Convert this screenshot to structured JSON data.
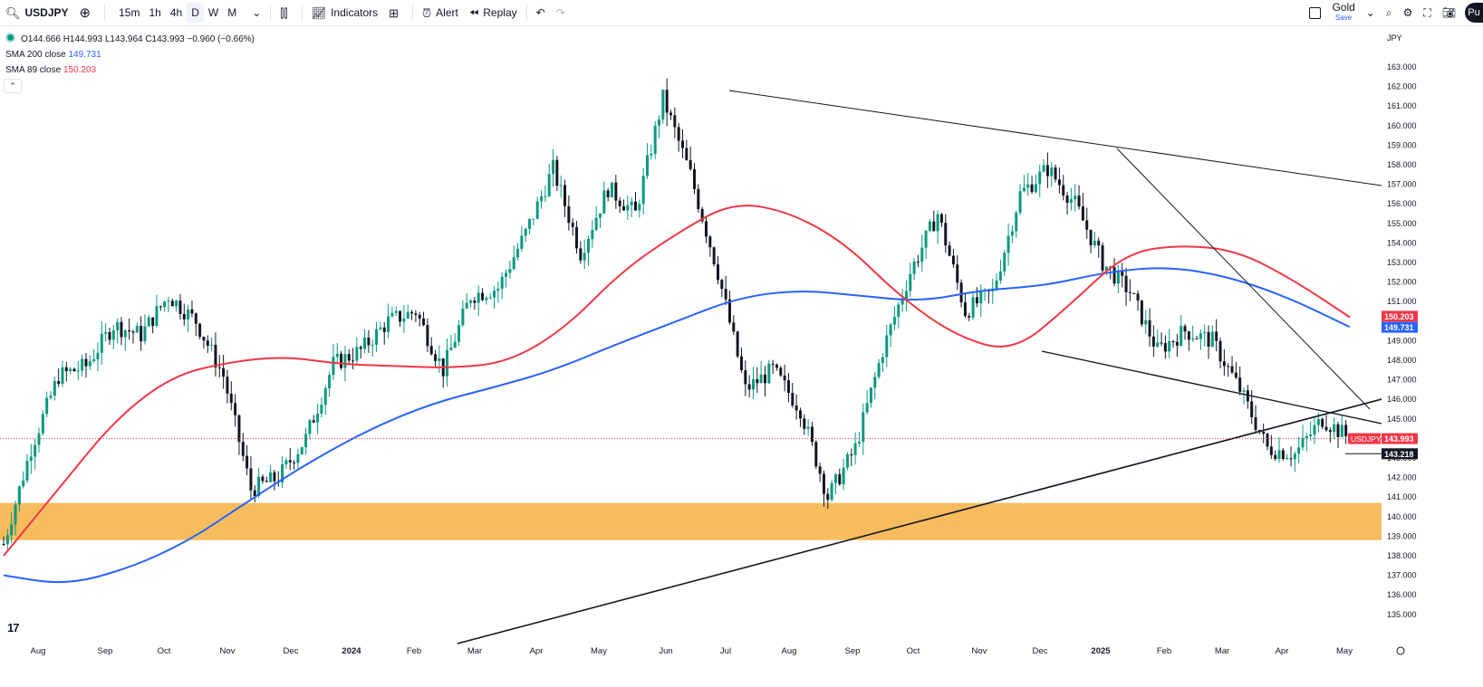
{
  "toolbar": {
    "symbol": "USDJPY",
    "timeframes": [
      "15m",
      "1h",
      "4h",
      "D",
      "W",
      "M"
    ],
    "active_timeframe": "D",
    "indicators_label": "Indicators",
    "alert_label": "Alert",
    "replay_label": "Replay",
    "layout_name": "Gold",
    "layout_save": "Save",
    "publish_label": "Pu"
  },
  "legend": {
    "ohlc": "O144.666 H144.993 L143.964 C143.993 −0.960 (−0.66%)",
    "sma200_label": "SMA 200 close",
    "sma200_value": "149.731",
    "sma89_label": "SMA 89 close",
    "sma89_value": "150.203"
  },
  "colors": {
    "up": "#089981",
    "down": "#131722",
    "sma200": "#2962ff",
    "sma89": "#f23645",
    "zone": "#f5b041",
    "trend": "#131722"
  },
  "chart_data": {
    "type": "candlestick",
    "currency": "JPY",
    "ylim": [
      134,
      164
    ],
    "y_ticks": [
      "135.000",
      "136.000",
      "137.000",
      "138.000",
      "139.000",
      "140.000",
      "141.000",
      "142.000",
      "143.000",
      "144.000",
      "145.000",
      "146.000",
      "147.000",
      "148.000",
      "149.000",
      "150.000",
      "151.000",
      "152.000",
      "153.000",
      "154.000",
      "155.000",
      "156.000",
      "157.000",
      "158.000",
      "159.000",
      "160.000",
      "161.000",
      "162.000",
      "163.000"
    ],
    "x_months": [
      "Aug",
      "Sep",
      "Oct",
      "Nov",
      "Dec",
      "2024",
      "Feb",
      "Mar",
      "Apr",
      "May",
      "Jun",
      "Jul",
      "Aug",
      "Sep",
      "Oct",
      "Nov",
      "Dec",
      "2025",
      "Feb",
      "Mar",
      "Apr",
      "May"
    ],
    "x_months_bold": [
      "2024",
      "2025"
    ],
    "price_labels": {
      "sma89": "150.203",
      "sma200": "149.731",
      "last_symbol": "USDJPY",
      "last": "143.993",
      "crosshair": "143.218"
    },
    "last_price": 143.993,
    "crosshair_price": 143.218,
    "support_zone": [
      138.8,
      140.7
    ],
    "close_path": [
      [
        "Aug",
        138.6
      ],
      [
        "Aug",
        143.5
      ],
      [
        "Sep",
        147.2
      ],
      [
        "Sep",
        147.7
      ],
      [
        "Oct",
        149.8
      ],
      [
        "Oct",
        149.3
      ],
      [
        "Nov",
        151.3
      ],
      [
        "Nov",
        150.0
      ],
      [
        "Dec",
        147.2
      ],
      [
        "Dec",
        141.4
      ],
      [
        "Dec",
        142.0
      ],
      [
        "2024",
        144.0
      ],
      [
        "2024",
        147.8
      ],
      [
        "Feb",
        148.5
      ],
      [
        "Feb",
        150.0
      ],
      [
        "Mar",
        150.5
      ],
      [
        "Mar",
        147.5
      ],
      [
        "Mar",
        151.3
      ],
      [
        "Apr",
        151.7
      ],
      [
        "Apr",
        154.5
      ],
      [
        "May",
        157.8
      ],
      [
        "May",
        153.5
      ],
      [
        "Jun",
        156.8
      ],
      [
        "Jun",
        155.5
      ],
      [
        "Jul",
        161.4
      ],
      [
        "Jul",
        157.5
      ],
      [
        "Aug",
        152.5
      ],
      [
        "Aug",
        146.5
      ],
      [
        "Aug",
        147.5
      ],
      [
        "Sep",
        145.5
      ],
      [
        "Sep",
        141.0
      ],
      [
        "Oct",
        143.5
      ],
      [
        "Oct",
        148.5
      ],
      [
        "Nov",
        152.5
      ],
      [
        "Nov",
        155.5
      ],
      [
        "Dec",
        150.5
      ],
      [
        "Dec",
        151.5
      ],
      [
        "Dec",
        156.5
      ],
      [
        "2025",
        157.8
      ],
      [
        "2025",
        156.0
      ],
      [
        "Feb",
        153.0
      ],
      [
        "Feb",
        151.5
      ],
      [
        "Mar",
        148.5
      ],
      [
        "Mar",
        149.5
      ],
      [
        "Apr",
        149.0
      ],
      [
        "Apr",
        146.5
      ],
      [
        "Apr",
        143.5
      ],
      [
        "May",
        143.2
      ],
      [
        "May",
        145.0
      ],
      [
        "May",
        143.99
      ]
    ],
    "sma89_path": [
      [
        "Aug",
        138.0
      ],
      [
        "Sep",
        141.5
      ],
      [
        "Oct",
        145.0
      ],
      [
        "Nov",
        147.2
      ],
      [
        "Nov",
        147.9
      ],
      [
        "Dec",
        148.2
      ],
      [
        "2024",
        147.8
      ],
      [
        "Feb",
        147.7
      ],
      [
        "Mar",
        147.6
      ],
      [
        "Apr",
        147.9
      ],
      [
        "May",
        149.6
      ],
      [
        "Jun",
        152.5
      ],
      [
        "Jul",
        154.5
      ],
      [
        "Aug",
        156.1
      ],
      [
        "Aug",
        155.6
      ],
      [
        "Sep",
        154.0
      ],
      [
        "Oct",
        151.2
      ],
      [
        "Nov",
        149.2
      ],
      [
        "Dec",
        148.4
      ],
      [
        "2025",
        150.8
      ],
      [
        "Feb",
        153.5
      ],
      [
        "Feb",
        153.9
      ],
      [
        "Mar",
        153.6
      ],
      [
        "Apr",
        152.1
      ],
      [
        "May",
        150.2
      ]
    ],
    "sma200_path": [
      [
        "Aug",
        137.0
      ],
      [
        "Aug",
        136.5
      ],
      [
        "Sep",
        137.3
      ],
      [
        "Oct",
        138.7
      ],
      [
        "Nov",
        140.8
      ],
      [
        "Dec",
        142.8
      ],
      [
        "2024",
        144.5
      ],
      [
        "Feb",
        145.8
      ],
      [
        "Mar",
        146.6
      ],
      [
        "Apr",
        147.5
      ],
      [
        "May",
        148.8
      ],
      [
        "Jun",
        150.0
      ],
      [
        "Jul",
        151.2
      ],
      [
        "Aug",
        151.6
      ],
      [
        "Sep",
        151.3
      ],
      [
        "Oct",
        151.0
      ],
      [
        "Nov",
        151.6
      ],
      [
        "Dec",
        151.8
      ],
      [
        "2025",
        152.5
      ],
      [
        "Feb",
        152.8
      ],
      [
        "Mar",
        152.3
      ],
      [
        "Apr",
        151.2
      ],
      [
        "May",
        149.7
      ]
    ]
  }
}
